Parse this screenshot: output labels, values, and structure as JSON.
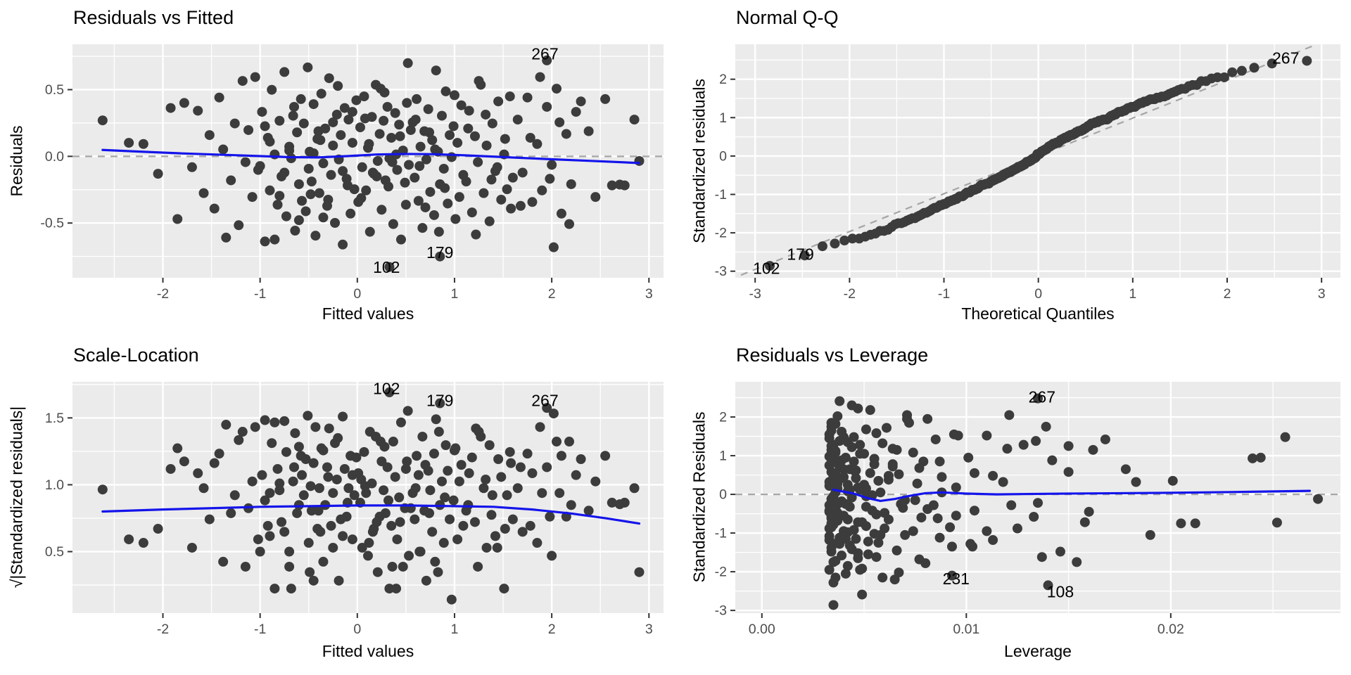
{
  "style": {
    "panel_bg": "#EBEBEB",
    "grid_major": "#FFFFFF",
    "grid_minor": "#FFFFFF",
    "point_color": "#3C3C3C",
    "smooth_color": "#1414EB",
    "ref_color": "#A6A6A6",
    "tick_color": "#333333",
    "tick_label_color": "#4D4D4D",
    "label_color": "#000000"
  },
  "observations": {
    "n": 225,
    "sigma": 0.29,
    "fitted": [
      -2.62,
      2.9,
      1.95,
      0.33,
      0.85,
      -1.35,
      2.02,
      0.52,
      2.75,
      -2.35,
      2.3,
      -2.2,
      -2.05,
      -1.92,
      -1.85,
      -1.78,
      -1.7,
      -1.64,
      -1.58,
      -1.52,
      -1.47,
      -1.42,
      -1.38,
      -1.3,
      -1.26,
      -1.22,
      -1.18,
      -1.15,
      -1.12,
      -1.08,
      -1.05,
      -1.02,
      -0.98,
      -0.95,
      -0.92,
      -0.9,
      -0.88,
      -0.85,
      -0.82,
      -0.8,
      -0.78,
      -0.75,
      -0.73,
      -0.7,
      -0.68,
      -0.66,
      -0.64,
      -0.62,
      -0.6,
      -0.58,
      -0.57,
      -0.85,
      -0.95,
      -0.75,
      -0.65,
      -0.6,
      -0.7,
      -0.8,
      -0.9,
      -1.0,
      -0.55,
      -0.53,
      -0.51,
      -0.49,
      -0.47,
      -0.45,
      -0.43,
      -0.41,
      -0.39,
      -0.37,
      -0.35,
      -0.33,
      -0.31,
      -0.29,
      -0.27,
      -0.25,
      -0.23,
      -0.21,
      -0.19,
      -0.17,
      -0.15,
      -0.13,
      -0.11,
      -0.09,
      -0.07,
      -0.05,
      -0.03,
      -0.01,
      -0.5,
      -0.4,
      -0.3,
      -0.2,
      -0.1,
      -0.45,
      -0.35,
      -0.25,
      -0.15,
      -0.05,
      -0.48,
      -0.38,
      0.01,
      0.03,
      0.05,
      0.07,
      0.09,
      0.11,
      0.13,
      0.15,
      0.17,
      0.19,
      0.21,
      0.23,
      0.25,
      0.27,
      0.29,
      0.31,
      0.33,
      0.35,
      0.37,
      0.39,
      0.41,
      0.43,
      0.45,
      0.47,
      0.49,
      0.51,
      0.53,
      0.55,
      0.04,
      0.12,
      0.2,
      0.28,
      0.36,
      0.44,
      0.5,
      0.08,
      0.16,
      0.24,
      0.32,
      0.4,
      0.57,
      0.59,
      0.61,
      0.63,
      0.65,
      0.67,
      0.69,
      0.71,
      0.73,
      0.75,
      0.77,
      0.79,
      0.81,
      0.83,
      0.85,
      0.87,
      0.89,
      0.91,
      0.93,
      0.95,
      0.97,
      0.99,
      1.01,
      1.03,
      1.05,
      1.07,
      1.09,
      0.6,
      0.7,
      0.8,
      0.9,
      1.0,
      0.64,
      0.74,
      0.84,
      1.12,
      1.15,
      1.18,
      1.21,
      1.24,
      1.27,
      1.3,
      1.33,
      1.36,
      1.39,
      1.42,
      1.45,
      1.48,
      1.51,
      1.54,
      1.57,
      1.6,
      1.14,
      1.22,
      1.32,
      1.44,
      1.52,
      1.58,
      1.25,
      1.38,
      1.65,
      1.7,
      1.75,
      1.8,
      1.85,
      1.9,
      1.95,
      2.0,
      2.05,
      2.1,
      2.15,
      2.2,
      2.25,
      1.68,
      1.78,
      1.88,
      1.98,
      2.08,
      2.18,
      2.38,
      2.45,
      2.55,
      2.62,
      2.7,
      2.85
    ],
    "std_resid": [
      0.93,
      -0.12,
      2.48,
      -2.86,
      -2.59,
      -2.1,
      -2.35,
      2.41,
      -0.75,
      0.35,
      1.42,
      0.32,
      -0.45,
      1.25,
      -1.62,
      1.38,
      -0.28,
      1.18,
      -0.95,
      0.55,
      -1.35,
      1.52,
      0.18,
      -0.62,
      0.85,
      -1.78,
      1.95,
      -0.15,
      0.68,
      -1.05,
      2.05,
      -0.35,
      1.15,
      -2.2,
      0.48,
      -0.88,
      1.72,
      0.05,
      -1.25,
      0.92,
      -0.52,
      2.18,
      -1.55,
      0.25,
      -0.05,
      1.05,
      -1.92,
      0.62,
      -0.72,
      1.48,
      -1.15,
      -2.15,
      0.78,
      -0.42,
      1.28,
      -1.65,
      0.15,
      -1.02,
      0.38,
      -0.25,
      0.85,
      -1.42,
      2.3,
      0.12,
      -0.65,
      1.35,
      -2.05,
      0.45,
      -0.95,
      1.62,
      -0.18,
      0.72,
      -1.28,
      2.02,
      -0.48,
      0.28,
      -1.72,
      1.08,
      -0.08,
      0.55,
      -2.28,
      1.25,
      -0.58,
      0.95,
      -1.48,
      0.35,
      -0.85,
      1.45,
      -0.32,
      0.65,
      -1.12,
      1.82,
      -0.75,
      0.08,
      -1.58,
      0.88,
      -0.38,
      1.15,
      -0.98,
      0.42,
      -1.18,
      0.75,
      -0.28,
      1.55,
      -0.88,
      0.22,
      -1.95,
      1.02,
      -0.45,
      1.85,
      -0.12,
      0.58,
      -1.38,
      0.92,
      -0.62,
      1.28,
      -0.05,
      0.48,
      -1.75,
      1.12,
      -0.35,
      0.82,
      -2.15,
      0.15,
      -0.68,
      1.38,
      -0.22,
      0.68,
      -1.08,
      0.32,
      -0.52,
      1.65,
      -0.15,
      0.52,
      -1.25,
      0.98,
      -0.42,
      1.75,
      -0.78,
      0.05,
      0.88,
      -0.55,
      1.48,
      -1.15,
      0.25,
      -1.85,
      0.65,
      -0.08,
      1.22,
      -0.92,
      0.42,
      -1.52,
      2.22,
      0.12,
      -0.72,
      1.05,
      -0.32,
      1.68,
      -1.22,
      0.55,
      -0.02,
      0.78,
      -1.62,
      0.35,
      -1.05,
      1.32,
      -0.48,
      0.95,
      -1.32,
      0.18,
      -0.82,
      1.58,
      -0.25,
      0.62,
      -1.95,
      -0.65,
      1.18,
      -1.45,
      0.52,
      -0.15,
      1.85,
      -0.95,
      0.28,
      -1.68,
      0.85,
      -0.38,
      1.42,
      -1.12,
      0.05,
      -0.85,
      1.55,
      -0.55,
      0.72,
      -2.02,
      1.08,
      -0.28,
      0.45,
      -1.35,
      1.95,
      -0.6,
      0.95,
      -0.42,
      1.52,
      -1.18,
      0.32,
      -0.88,
      1.28,
      -0.22,
      1.75,
      -1.48,
      0.58,
      -0.72,
      1.15,
      -1.28,
      0.48,
      2.05,
      -0.58,
      0.88,
      -1.75,
      0.65,
      -1.05,
      1.48,
      -0.75,
      -0.73,
      0.95
    ],
    "leverage": [
      0.024,
      0.0272,
      0.0135,
      0.0035,
      0.0049,
      0.0093,
      0.014,
      0.0038,
      0.0205,
      0.0201,
      0.0168,
      0.0183,
      0.016,
      0.015,
      0.0137,
      0.0134,
      0.0122,
      0.012,
      0.011,
      0.0104,
      0.0103,
      0.0096,
      0.0095,
      0.0086,
      0.0087,
      0.008,
      0.0081,
      0.0075,
      0.0077,
      0.007,
      0.0071,
      0.0069,
      0.0066,
      0.0065,
      0.0062,
      0.006,
      0.0061,
      0.0058,
      0.0057,
      0.0055,
      0.0056,
      0.0053,
      0.0052,
      0.005,
      0.0051,
      0.0048,
      0.0049,
      0.0046,
      0.0047,
      0.0045,
      0.0046,
      0.0059,
      0.0064,
      0.0054,
      0.0048,
      0.0047,
      0.0051,
      0.0055,
      0.0062,
      0.0068,
      0.0045,
      0.0044,
      0.0044,
      0.0043,
      0.0042,
      0.0042,
      0.0041,
      0.004,
      0.004,
      0.0039,
      0.0039,
      0.0038,
      0.0038,
      0.0037,
      0.0037,
      0.0037,
      0.0036,
      0.0036,
      0.0035,
      0.0035,
      0.0035,
      0.0034,
      0.0034,
      0.0034,
      0.0034,
      0.0034,
      0.0034,
      0.0033,
      0.0043,
      0.004,
      0.0038,
      0.0036,
      0.0034,
      0.0042,
      0.0039,
      0.0036,
      0.0035,
      0.0034,
      0.0042,
      0.0039,
      0.0033,
      0.0033,
      0.0033,
      0.0033,
      0.0033,
      0.0033,
      0.0033,
      0.0034,
      0.0033,
      0.0034,
      0.0034,
      0.0034,
      0.0034,
      0.0034,
      0.0034,
      0.0035,
      0.0035,
      0.0035,
      0.0035,
      0.0036,
      0.0036,
      0.0036,
      0.0036,
      0.0037,
      0.0037,
      0.0038,
      0.0038,
      0.0039,
      0.0033,
      0.0033,
      0.0034,
      0.0034,
      0.0035,
      0.0036,
      0.0037,
      0.0033,
      0.0033,
      0.0034,
      0.0035,
      0.0036,
      0.0039,
      0.004,
      0.004,
      0.0041,
      0.0042,
      0.0042,
      0.0043,
      0.0044,
      0.0044,
      0.0045,
      0.0046,
      0.0047,
      0.0047,
      0.0048,
      0.0049,
      0.005,
      0.0051,
      0.0051,
      0.0052,
      0.0053,
      0.0054,
      0.0055,
      0.0056,
      0.0057,
      0.0058,
      0.0059,
      0.006,
      0.0041,
      0.0043,
      0.0047,
      0.0051,
      0.0056,
      0.0041,
      0.0045,
      0.0048,
      0.0062,
      0.0064,
      0.0066,
      0.0067,
      0.007,
      0.0072,
      0.0074,
      0.0076,
      0.0077,
      0.0079,
      0.0081,
      0.0085,
      0.0087,
      0.0088,
      0.0092,
      0.0094,
      0.0095,
      0.0064,
      0.0067,
      0.0074,
      0.0084,
      0.0088,
      0.0093,
      0.0071,
      0.0078,
      0.0101,
      0.0104,
      0.011,
      0.0113,
      0.0118,
      0.0125,
      0.0128,
      0.0135,
      0.0139,
      0.0146,
      0.015,
      0.0158,
      0.0162,
      0.0102,
      0.0113,
      0.0121,
      0.0133,
      0.0142,
      0.0154,
      0.0178,
      0.019,
      0.0256,
      0.0212,
      0.0252,
      0.0244
    ]
  },
  "chart_data": [
    {
      "type": "scatter",
      "id": "residuals-vs-fitted",
      "title": "Residuals vs Fitted",
      "xlabel": "Fitted values",
      "ylabel": "Residuals",
      "xlim": [
        -2.93,
        3.15
      ],
      "ylim": [
        -0.91,
        0.84
      ],
      "xticks": [
        -2,
        -1,
        0,
        1,
        2,
        3
      ],
      "xtick_labels": [
        "-2",
        "-1",
        "0",
        "1",
        "2",
        "3"
      ],
      "yticks": [
        -0.5,
        0,
        0.5
      ],
      "ytick_labels": [
        "-0.5",
        "0.0",
        "0.5"
      ],
      "derived_from": {
        "x": "fitted",
        "y": "std_resid * sigma"
      },
      "ref_line": [
        [
          -2.93,
          0
        ],
        [
          3.15,
          0
        ]
      ],
      "smooth": [
        [
          -2.62,
          0.048
        ],
        [
          -2.2,
          0.034
        ],
        [
          -1.8,
          0.022
        ],
        [
          -1.4,
          0.012
        ],
        [
          -1.0,
          0.002
        ],
        [
          -0.7,
          -0.006
        ],
        [
          -0.4,
          -0.008
        ],
        [
          -0.1,
          0.002
        ],
        [
          0.2,
          0.014
        ],
        [
          0.5,
          0.018
        ],
        [
          0.8,
          0.016
        ],
        [
          1.1,
          0.008
        ],
        [
          1.4,
          -0.002
        ],
        [
          1.7,
          -0.012
        ],
        [
          2.0,
          -0.022
        ],
        [
          2.4,
          -0.034
        ],
        [
          2.9,
          -0.05
        ]
      ],
      "point_labels": [
        {
          "text": "267",
          "x": 1.93,
          "y": 0.77
        },
        {
          "text": "179",
          "x": 0.85,
          "y": -0.72
        },
        {
          "text": "102",
          "x": 0.3,
          "y": -0.83
        }
      ]
    },
    {
      "type": "scatter",
      "id": "normal-qq",
      "title": "Normal Q-Q",
      "xlabel": "Theoretical Quantiles",
      "ylabel": "Standardized residuals",
      "xlim": [
        -3.21,
        3.2
      ],
      "ylim": [
        -3.17,
        2.91
      ],
      "xticks": [
        -3,
        -2,
        -1,
        0,
        1,
        2,
        3
      ],
      "xtick_labels": [
        "-3",
        "-2",
        "-1",
        "0",
        "1",
        "2",
        "3"
      ],
      "yticks": [
        -3,
        -2,
        -1,
        0,
        1,
        2
      ],
      "ytick_labels": [
        "-3",
        "-2",
        "-1",
        "0",
        "1",
        "2"
      ],
      "derived_from": {
        "x": "normal quantiles of rank",
        "y": "sorted std_resid"
      },
      "ref_line": [
        [
          -3.15,
          -3.1
        ],
        [
          2.9,
          2.86
        ]
      ],
      "smooth": null,
      "point_labels": [
        {
          "text": "267",
          "x": 2.62,
          "y": 2.55
        },
        {
          "text": "179",
          "x": -2.52,
          "y": -2.56
        },
        {
          "text": "102",
          "x": -2.88,
          "y": -2.92
        }
      ]
    },
    {
      "type": "scatter",
      "id": "scale-location",
      "title": "Scale-Location",
      "xlabel": "Fitted values",
      "ylabel": "√|Standardized residuals|",
      "xlim": [
        -2.93,
        3.15
      ],
      "ylim": [
        0.04,
        1.77
      ],
      "xticks": [
        -2,
        -1,
        0,
        1,
        2,
        3
      ],
      "xtick_labels": [
        "-2",
        "-1",
        "0",
        "1",
        "2",
        "3"
      ],
      "yticks": [
        0.5,
        1.0,
        1.5
      ],
      "ytick_labels": [
        "0.5",
        "1.0",
        "1.5"
      ],
      "derived_from": {
        "x": "fitted",
        "y": "sqrt(|std_resid|)"
      },
      "ref_line": null,
      "smooth": [
        [
          -2.62,
          0.8
        ],
        [
          -2.0,
          0.815
        ],
        [
          -1.5,
          0.825
        ],
        [
          -1.0,
          0.835
        ],
        [
          -0.5,
          0.84
        ],
        [
          0,
          0.845
        ],
        [
          0.5,
          0.845
        ],
        [
          1.0,
          0.84
        ],
        [
          1.4,
          0.835
        ],
        [
          1.8,
          0.815
        ],
        [
          2.2,
          0.785
        ],
        [
          2.55,
          0.75
        ],
        [
          2.9,
          0.71
        ]
      ],
      "point_labels": [
        {
          "text": "102",
          "x": 0.3,
          "y": 1.72
        },
        {
          "text": "179",
          "x": 0.85,
          "y": 1.63
        },
        {
          "text": "267",
          "x": 1.93,
          "y": 1.63
        }
      ]
    },
    {
      "type": "scatter",
      "id": "residuals-vs-leverage",
      "title": "Residuals vs Leverage",
      "xlabel": "Leverage",
      "ylabel": "Standardized Residuals",
      "xlim": [
        -0.0013,
        0.0283
      ],
      "ylim": [
        -3.07,
        2.91
      ],
      "xticks": [
        0,
        0.01,
        0.02
      ],
      "xtick_labels": [
        "0.00",
        "0.01",
        "0.02"
      ],
      "yticks": [
        -3,
        -2,
        -1,
        0,
        1,
        2
      ],
      "ytick_labels": [
        "-3",
        "-2",
        "-1",
        "0",
        "1",
        "2"
      ],
      "derived_from": {
        "x": "leverage",
        "y": "std_resid"
      },
      "ref_line": [
        [
          -0.0013,
          0
        ],
        [
          0.0283,
          0
        ]
      ],
      "smooth": [
        [
          0.0035,
          0.12
        ],
        [
          0.0045,
          0.02
        ],
        [
          0.0052,
          -0.1
        ],
        [
          0.0058,
          -0.17
        ],
        [
          0.0065,
          -0.12
        ],
        [
          0.0072,
          -0.04
        ],
        [
          0.008,
          0.03
        ],
        [
          0.0088,
          0.05
        ],
        [
          0.01,
          0.02
        ],
        [
          0.0115,
          0.0
        ],
        [
          0.013,
          0.01
        ],
        [
          0.015,
          0.02
        ],
        [
          0.0175,
          0.03
        ],
        [
          0.02,
          0.04
        ],
        [
          0.023,
          0.06
        ],
        [
          0.0268,
          0.09
        ]
      ],
      "point_labels": [
        {
          "text": "267",
          "x": 0.0137,
          "y": 2.52
        },
        {
          "text": "231",
          "x": 0.0095,
          "y": -2.18
        },
        {
          "text": "108",
          "x": 0.0146,
          "y": -2.52
        }
      ]
    }
  ]
}
